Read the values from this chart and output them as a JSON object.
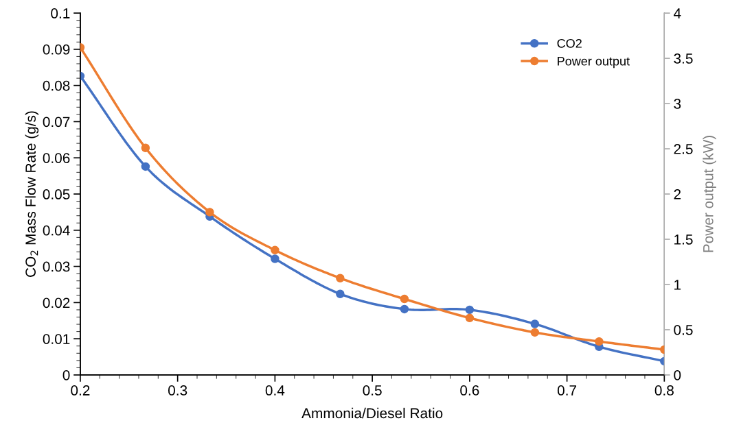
{
  "chart_data": {
    "type": "line",
    "xlabel": "Ammonia/Diesel Ratio",
    "ylabel": "CO$_{2}$ Mass Flow Rate (g/s)",
    "y2label": "Power output (kW)",
    "x": [
      0.2,
      0.267,
      0.333,
      0.4,
      0.467,
      0.533,
      0.6,
      0.667,
      0.733,
      0.8
    ],
    "series": [
      {
        "name": "CO2",
        "color": "#4472c4",
        "values": [
          0.0826,
          0.0576,
          0.0438,
          0.0321,
          0.0224,
          0.0182,
          0.018,
          0.0141,
          0.0078,
          0.0038
        ]
      },
      {
        "name": "Power output",
        "color": "#ed7d31",
        "axis": "y2",
        "values": [
          3.62,
          2.51,
          1.8,
          1.38,
          1.07,
          0.84,
          0.63,
          0.47,
          0.37,
          0.28
        ]
      }
    ],
    "xlim": [
      0.2,
      0.8
    ],
    "xticks": [
      0.2,
      0.3,
      0.4,
      0.5,
      0.6,
      0.7,
      0.8
    ],
    "ylim": [
      0,
      0.1
    ],
    "yticks": [
      0,
      0.01,
      0.02,
      0.03,
      0.04,
      0.05,
      0.06,
      0.07,
      0.08,
      0.09,
      0.1
    ],
    "y2lim": [
      0,
      4
    ],
    "y2ticks": [
      0,
      0.5,
      1,
      1.5,
      2,
      2.5,
      3,
      3.5,
      4
    ],
    "marker": "circle",
    "line_style": "solid",
    "grid": false,
    "legend": "top right"
  }
}
